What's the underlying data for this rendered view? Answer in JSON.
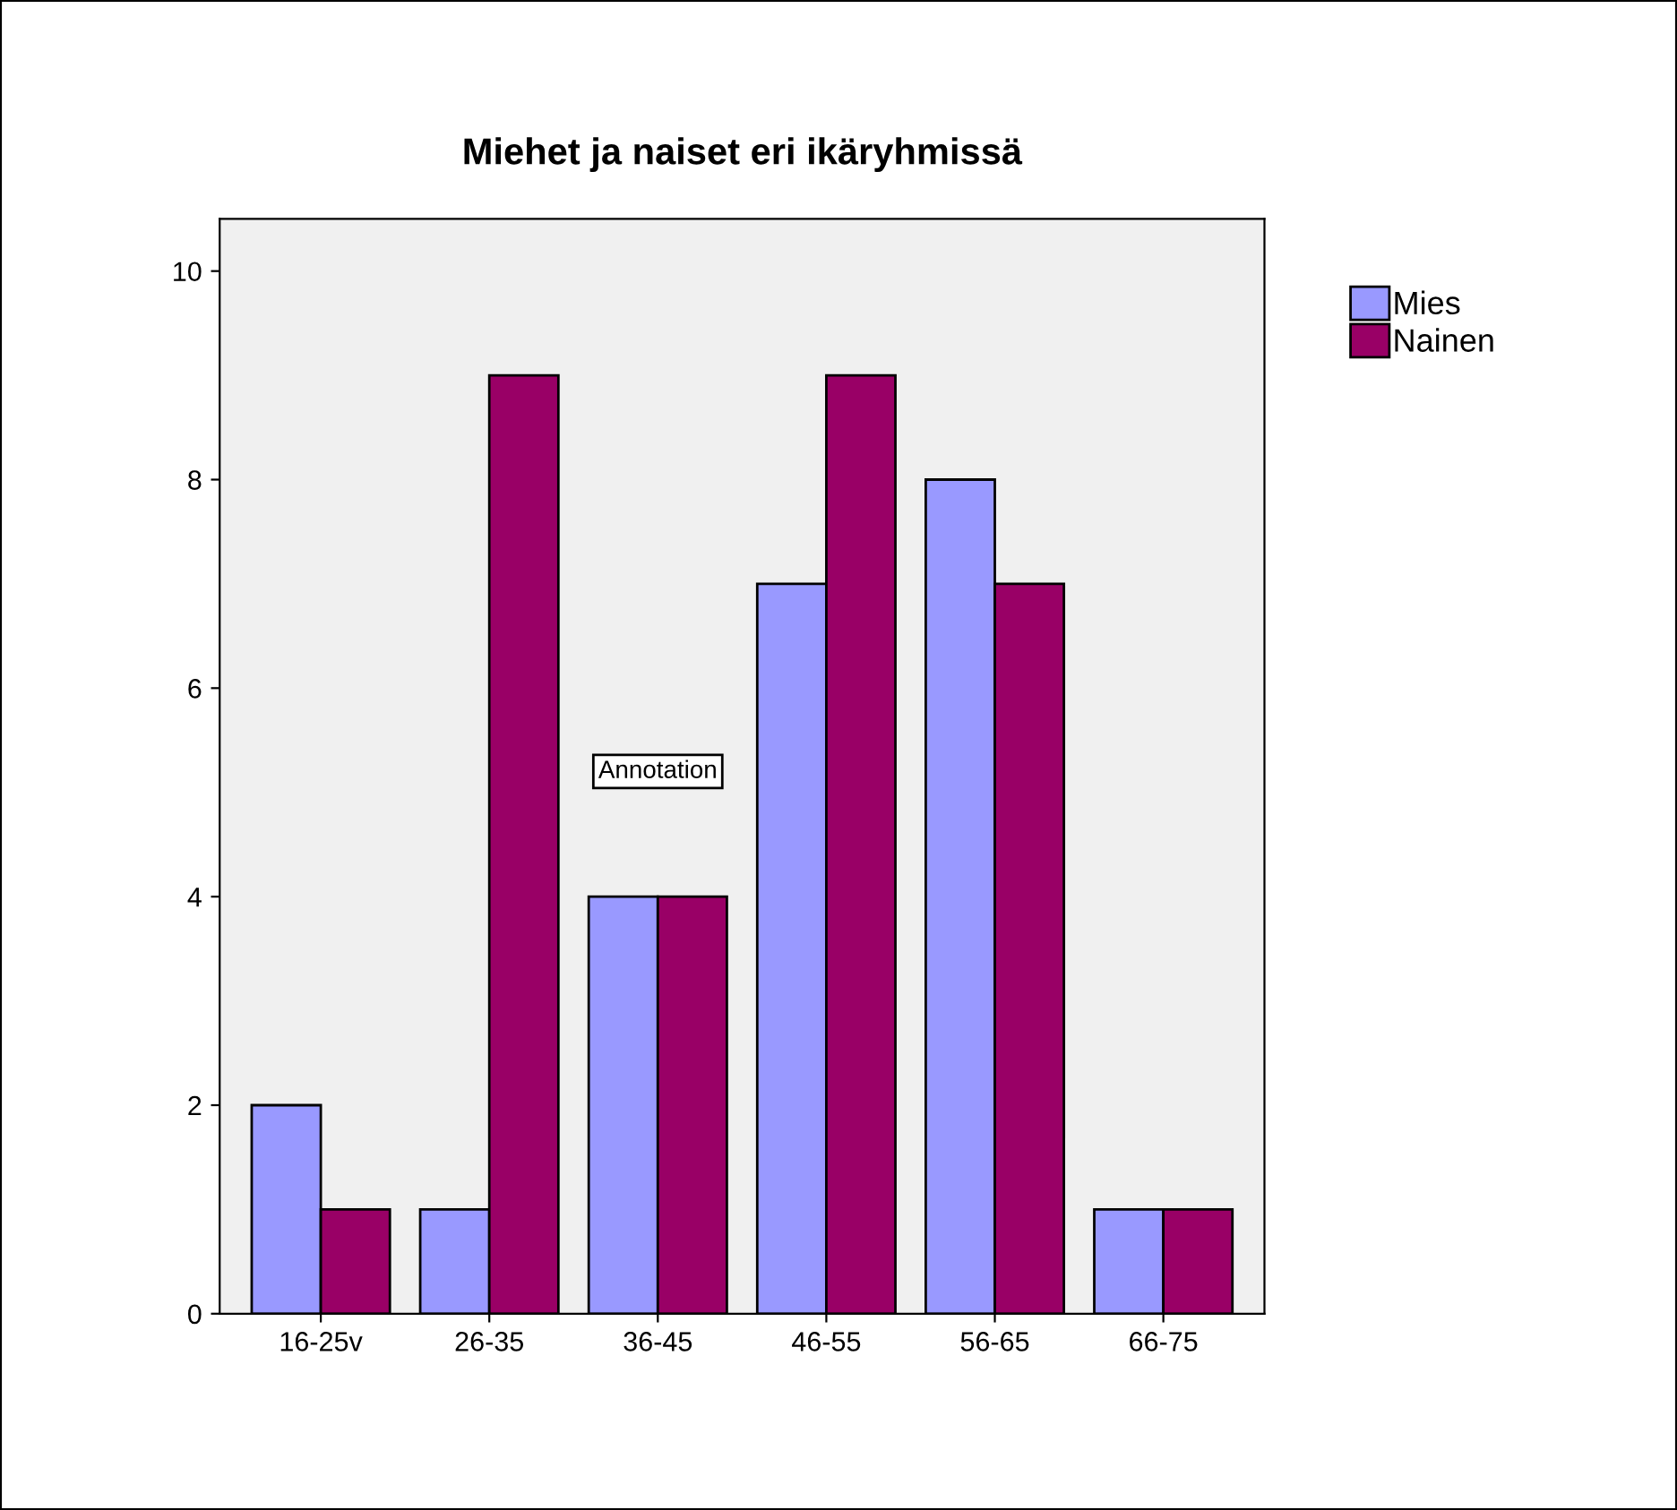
{
  "chart_data": {
    "type": "bar",
    "title": "Miehet ja naiset eri ikäryhmissä",
    "categories": [
      "16-25v",
      "26-35",
      "36-45",
      "46-55",
      "56-65",
      "66-75"
    ],
    "series": [
      {
        "name": "Mies",
        "color": "#9999ff",
        "values": [
          2,
          1,
          4,
          7,
          8,
          1
        ]
      },
      {
        "name": "Nainen",
        "color": "#990066",
        "values": [
          1,
          9,
          4,
          9,
          7,
          1
        ]
      }
    ],
    "ylim": [
      0,
      10.5
    ],
    "yticks": [
      0,
      2,
      4,
      6,
      8,
      10
    ],
    "grid": false,
    "legend": "top right",
    "annotations": [
      "Annotation"
    ]
  }
}
